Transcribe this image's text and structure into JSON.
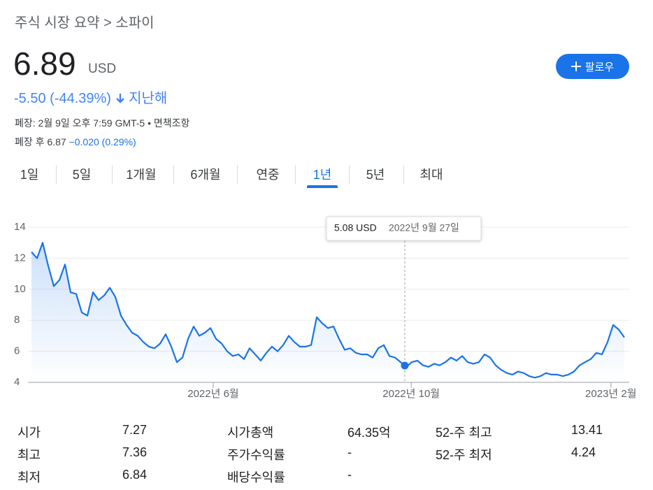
{
  "breadcrumb": "주식 시장 요약 > 소파이",
  "price": {
    "value": "6.89",
    "currency": "USD"
  },
  "change": {
    "text": "-5.50 (-44.39%)",
    "period": "지난해"
  },
  "follow_button": "팔로우",
  "market_status": "폐장: 2월 9일 오후 7:59 GMT-5 • 면책조항",
  "after_hours": {
    "label": "폐장 후 6.87",
    "change": "−0.020 (0.29%)"
  },
  "tabs": [
    "1일",
    "5일",
    "1개월",
    "6개월",
    "연중",
    "1년",
    "5년",
    "최대"
  ],
  "selected_tab": 5,
  "chart_data": {
    "type": "line",
    "color": "#1a73e8",
    "values": [
      12.4,
      12.0,
      13.0,
      11.5,
      10.2,
      10.6,
      11.6,
      9.8,
      9.7,
      8.5,
      8.3,
      9.8,
      9.3,
      9.6,
      10.1,
      9.5,
      8.3,
      7.7,
      7.2,
      7.0,
      6.6,
      6.3,
      6.2,
      6.5,
      7.1,
      6.3,
      5.3,
      5.6,
      6.8,
      7.6,
      7.0,
      7.2,
      7.5,
      6.8,
      6.5,
      6.0,
      5.7,
      5.8,
      5.5,
      6.2,
      5.8,
      5.4,
      5.9,
      6.3,
      6.0,
      6.4,
      7.0,
      6.6,
      6.3,
      6.3,
      6.4,
      8.2,
      7.8,
      7.5,
      7.6,
      6.8,
      6.1,
      6.2,
      5.9,
      5.8,
      5.8,
      5.6,
      6.2,
      6.4,
      5.7,
      5.6,
      5.3,
      5.0,
      5.3,
      5.4,
      5.1,
      5.0,
      5.2,
      5.1,
      5.3,
      5.6,
      5.4,
      5.7,
      5.3,
      5.2,
      5.3,
      5.8,
      5.6,
      5.1,
      4.8,
      4.6,
      4.5,
      4.7,
      4.6,
      4.4,
      4.3,
      4.4,
      4.6,
      4.5,
      4.5,
      4.4,
      4.5,
      4.7,
      5.1,
      5.3,
      5.5,
      5.9,
      5.8,
      6.6,
      7.7,
      7.4,
      6.9
    ],
    "xlim": [
      0,
      106
    ],
    "xticks": [
      {
        "value": 32.5,
        "label": "2022년 6월"
      },
      {
        "value": 67.9,
        "label": "2022년 10월"
      },
      {
        "value": 103.6,
        "label": "2023년 2월"
      }
    ],
    "ylim": [
      4,
      14
    ],
    "yticks": [
      4,
      6,
      8,
      10,
      12,
      14
    ],
    "grid": true,
    "tooltip": {
      "x": 66.75,
      "value": 5.08,
      "label": "5.08 USD",
      "date": "2022년 9월 27일"
    }
  },
  "stats": {
    "rows": [
      [
        "시가",
        "7.27",
        "시가총액",
        "64.35억",
        "52-주 최고",
        "13.41"
      ],
      [
        "최고",
        "7.36",
        "주가수익률",
        "-",
        "52-주 최저",
        "4.24"
      ],
      [
        "최저",
        "6.84",
        "배당수익률",
        "-"
      ]
    ]
  }
}
